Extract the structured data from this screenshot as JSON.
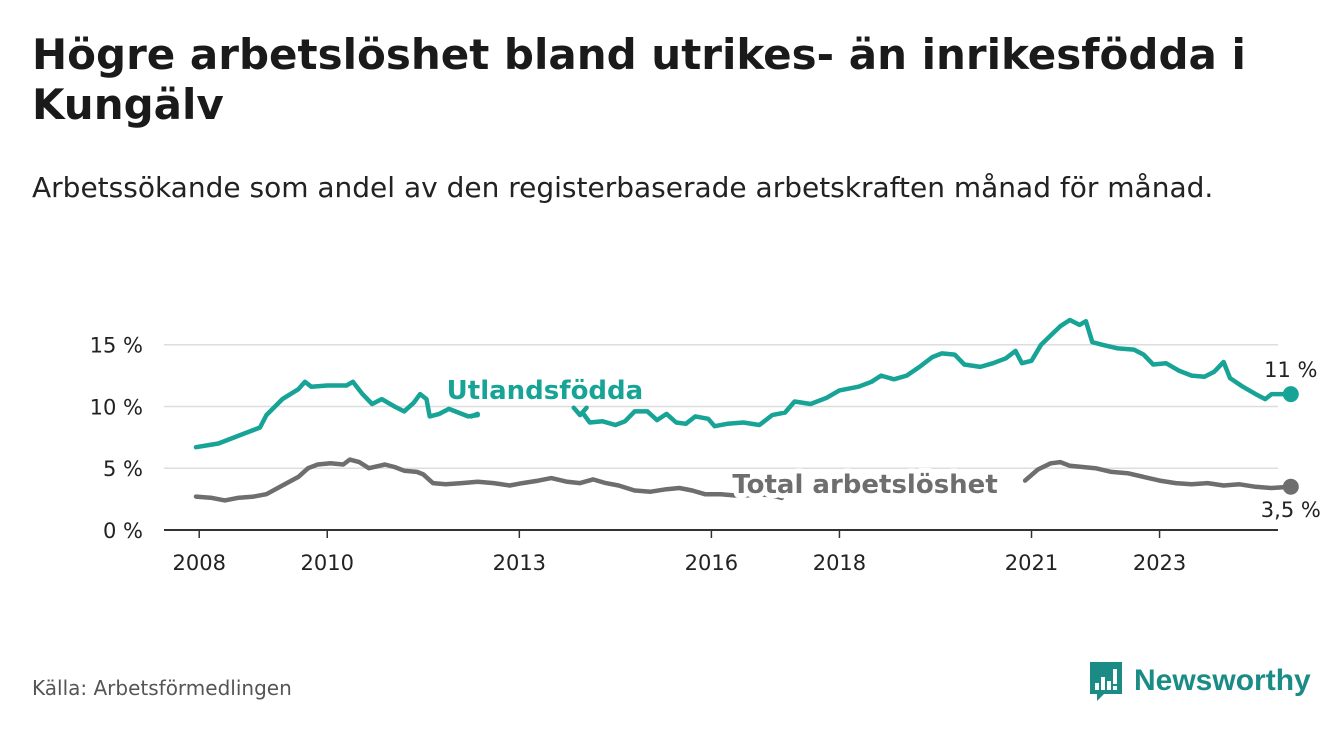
{
  "title": "Högre arbetslöshet bland utrikes- än inrikesfödda i Kungälv",
  "subtitle": "Arbetssökande som andel av den registerbaserade arbetskraften månad för månad.",
  "source": "Källa: Arbetsförmedlingen",
  "brand": "Newsworthy",
  "colors": {
    "foreign": "#17a497",
    "total": "#6e6e6e",
    "grid": "#dddddd",
    "axis": "#333333",
    "brand": "#1b8b86"
  },
  "chart_data": {
    "type": "line",
    "title": "Högre arbetslöshet bland utrikes- än inrikesfödda i Kungälv",
    "xlabel": "",
    "ylabel": "",
    "xlim": [
      2007.45,
      2024.85
    ],
    "ylim": [
      0,
      17
    ],
    "y_ticks": [
      0,
      5,
      10,
      15
    ],
    "y_tick_labels": [
      "0 %",
      "5 %",
      "10 %",
      "15 %"
    ],
    "x_ticks": [
      2008,
      2010,
      2013,
      2016,
      2018,
      2021,
      2023
    ],
    "x_tick_labels": [
      "2008",
      "2010",
      "2013",
      "2016",
      "2018",
      "2021",
      "2023"
    ],
    "series": [
      {
        "name": "Utlandsfödda",
        "end_label": "11 %",
        "segments": [
          [
            [
              2007.95,
              6.7
            ],
            [
              2008.3,
              7.0
            ],
            [
              2008.7,
              7.8
            ],
            [
              2008.95,
              8.3
            ],
            [
              2009.05,
              9.3
            ],
            [
              2009.3,
              10.6
            ],
            [
              2009.55,
              11.4
            ],
            [
              2009.65,
              12.0
            ],
            [
              2009.75,
              11.6
            ],
            [
              2010.0,
              11.7
            ],
            [
              2010.3,
              11.7
            ],
            [
              2010.4,
              12.0
            ],
            [
              2010.55,
              11.0
            ],
            [
              2010.7,
              10.2
            ],
            [
              2010.85,
              10.6
            ],
            [
              2011.05,
              10.0
            ],
            [
              2011.2,
              9.6
            ],
            [
              2011.35,
              10.3
            ],
            [
              2011.45,
              11.0
            ],
            [
              2011.55,
              10.6
            ],
            [
              2011.6,
              9.2
            ],
            [
              2011.75,
              9.4
            ],
            [
              2011.9,
              9.8
            ],
            [
              2012.05,
              9.5
            ],
            [
              2012.2,
              9.2
            ],
            [
              2012.35,
              9.3
            ]
          ],
          [
            [
              2012.25,
              9.2
            ],
            [
              2012.35,
              9.4
            ]
          ],
          [
            [
              2013.85,
              9.9
            ],
            [
              2013.95,
              9.3
            ],
            [
              2014.05,
              9.9
            ]
          ],
          [
            [
              2014.0,
              9.4
            ],
            [
              2014.1,
              8.7
            ],
            [
              2014.3,
              8.8
            ],
            [
              2014.5,
              8.5
            ],
            [
              2014.65,
              8.8
            ],
            [
              2014.8,
              9.6
            ],
            [
              2015.0,
              9.6
            ],
            [
              2015.15,
              8.9
            ],
            [
              2015.3,
              9.4
            ],
            [
              2015.45,
              8.7
            ],
            [
              2015.6,
              8.6
            ],
            [
              2015.75,
              9.2
            ],
            [
              2015.95,
              9.0
            ],
            [
              2016.05,
              8.4
            ],
            [
              2016.25,
              8.6
            ],
            [
              2016.5,
              8.7
            ],
            [
              2016.75,
              8.5
            ],
            [
              2016.95,
              9.3
            ],
            [
              2017.15,
              9.5
            ],
            [
              2017.3,
              10.4
            ],
            [
              2017.55,
              10.2
            ],
            [
              2017.8,
              10.7
            ],
            [
              2018.0,
              11.3
            ],
            [
              2018.3,
              11.6
            ],
            [
              2018.5,
              12.0
            ],
            [
              2018.65,
              12.5
            ],
            [
              2018.85,
              12.2
            ],
            [
              2019.05,
              12.5
            ],
            [
              2019.25,
              13.2
            ],
            [
              2019.45,
              14.0
            ],
            [
              2019.6,
              14.3
            ],
            [
              2019.8,
              14.2
            ],
            [
              2019.95,
              13.4
            ],
            [
              2020.2,
              13.2
            ],
            [
              2020.4,
              13.5
            ],
            [
              2020.6,
              13.9
            ],
            [
              2020.75,
              14.5
            ],
            [
              2020.85,
              13.5
            ],
            [
              2021.0,
              13.7
            ],
            [
              2021.15,
              15.0
            ],
            [
              2021.35,
              16.0
            ],
            [
              2021.45,
              16.5
            ],
            [
              2021.6,
              17.0
            ],
            [
              2021.75,
              16.6
            ],
            [
              2021.85,
              16.9
            ],
            [
              2021.95,
              15.2
            ],
            [
              2022.1,
              15.0
            ],
            [
              2022.35,
              14.7
            ],
            [
              2022.6,
              14.6
            ],
            [
              2022.75,
              14.2
            ],
            [
              2022.9,
              13.4
            ],
            [
              2023.1,
              13.5
            ],
            [
              2023.3,
              12.9
            ],
            [
              2023.5,
              12.5
            ],
            [
              2023.7,
              12.4
            ],
            [
              2023.85,
              12.8
            ],
            [
              2024.0,
              13.6
            ],
            [
              2024.1,
              12.3
            ],
            [
              2024.3,
              11.6
            ],
            [
              2024.5,
              11.0
            ],
            [
              2024.65,
              10.6
            ],
            [
              2024.75,
              11.0
            ],
            [
              2024.95,
              11.0
            ],
            [
              2025.05,
              11.0
            ]
          ]
        ],
        "endpoint": [
          2025.05,
          11.0
        ]
      },
      {
        "name": "Total arbetslöshet",
        "end_label": "3,5 %",
        "segments": [
          [
            [
              2007.95,
              2.7
            ],
            [
              2008.2,
              2.6
            ],
            [
              2008.4,
              2.4
            ],
            [
              2008.6,
              2.6
            ],
            [
              2008.85,
              2.7
            ],
            [
              2009.05,
              2.9
            ],
            [
              2009.3,
              3.6
            ],
            [
              2009.55,
              4.3
            ],
            [
              2009.7,
              5.0
            ],
            [
              2009.85,
              5.3
            ],
            [
              2010.05,
              5.4
            ],
            [
              2010.25,
              5.3
            ],
            [
              2010.35,
              5.7
            ],
            [
              2010.5,
              5.5
            ],
            [
              2010.65,
              5.0
            ],
            [
              2010.9,
              5.3
            ],
            [
              2011.05,
              5.1
            ],
            [
              2011.2,
              4.8
            ],
            [
              2011.4,
              4.7
            ],
            [
              2011.5,
              4.5
            ],
            [
              2011.65,
              3.8
            ],
            [
              2011.85,
              3.7
            ],
            [
              2012.1,
              3.8
            ],
            [
              2012.35,
              3.9
            ],
            [
              2012.6,
              3.8
            ],
            [
              2012.85,
              3.6
            ],
            [
              2013.05,
              3.8
            ],
            [
              2013.3,
              4.0
            ],
            [
              2013.5,
              4.2
            ],
            [
              2013.75,
              3.9
            ],
            [
              2013.95,
              3.8
            ],
            [
              2014.15,
              4.1
            ],
            [
              2014.35,
              3.8
            ],
            [
              2014.55,
              3.6
            ],
            [
              2014.8,
              3.2
            ],
            [
              2015.05,
              3.1
            ],
            [
              2015.3,
              3.3
            ],
            [
              2015.5,
              3.4
            ],
            [
              2015.7,
              3.2
            ],
            [
              2015.9,
              2.9
            ],
            [
              2016.15,
              2.9
            ],
            [
              2016.35,
              2.8
            ],
            [
              2016.55,
              2.8
            ],
            [
              2016.75,
              2.9
            ],
            [
              2016.95,
              2.8
            ],
            [
              2017.1,
              2.6
            ]
          ],
          [
            [
              2020.9,
              4.0
            ],
            [
              2021.1,
              4.9
            ],
            [
              2021.3,
              5.4
            ],
            [
              2021.45,
              5.5
            ],
            [
              2021.6,
              5.2
            ],
            [
              2021.8,
              5.1
            ],
            [
              2022.0,
              5.0
            ],
            [
              2022.25,
              4.7
            ],
            [
              2022.5,
              4.6
            ],
            [
              2022.75,
              4.3
            ],
            [
              2023.0,
              4.0
            ],
            [
              2023.25,
              3.8
            ],
            [
              2023.5,
              3.7
            ],
            [
              2023.75,
              3.8
            ],
            [
              2024.0,
              3.6
            ],
            [
              2024.25,
              3.7
            ],
            [
              2024.5,
              3.5
            ],
            [
              2024.75,
              3.4
            ],
            [
              2025.05,
              3.5
            ]
          ]
        ],
        "endpoint": [
          2025.05,
          3.5
        ]
      }
    ],
    "annotations": [
      {
        "text": "Utlandsfödda",
        "series": "Utlandsfödda",
        "x": 2013.4,
        "y": 10.6
      },
      {
        "text": "Total arbetslöshet",
        "series": "Total arbetslöshet",
        "x": 2018.4,
        "y": 3.0
      }
    ]
  }
}
